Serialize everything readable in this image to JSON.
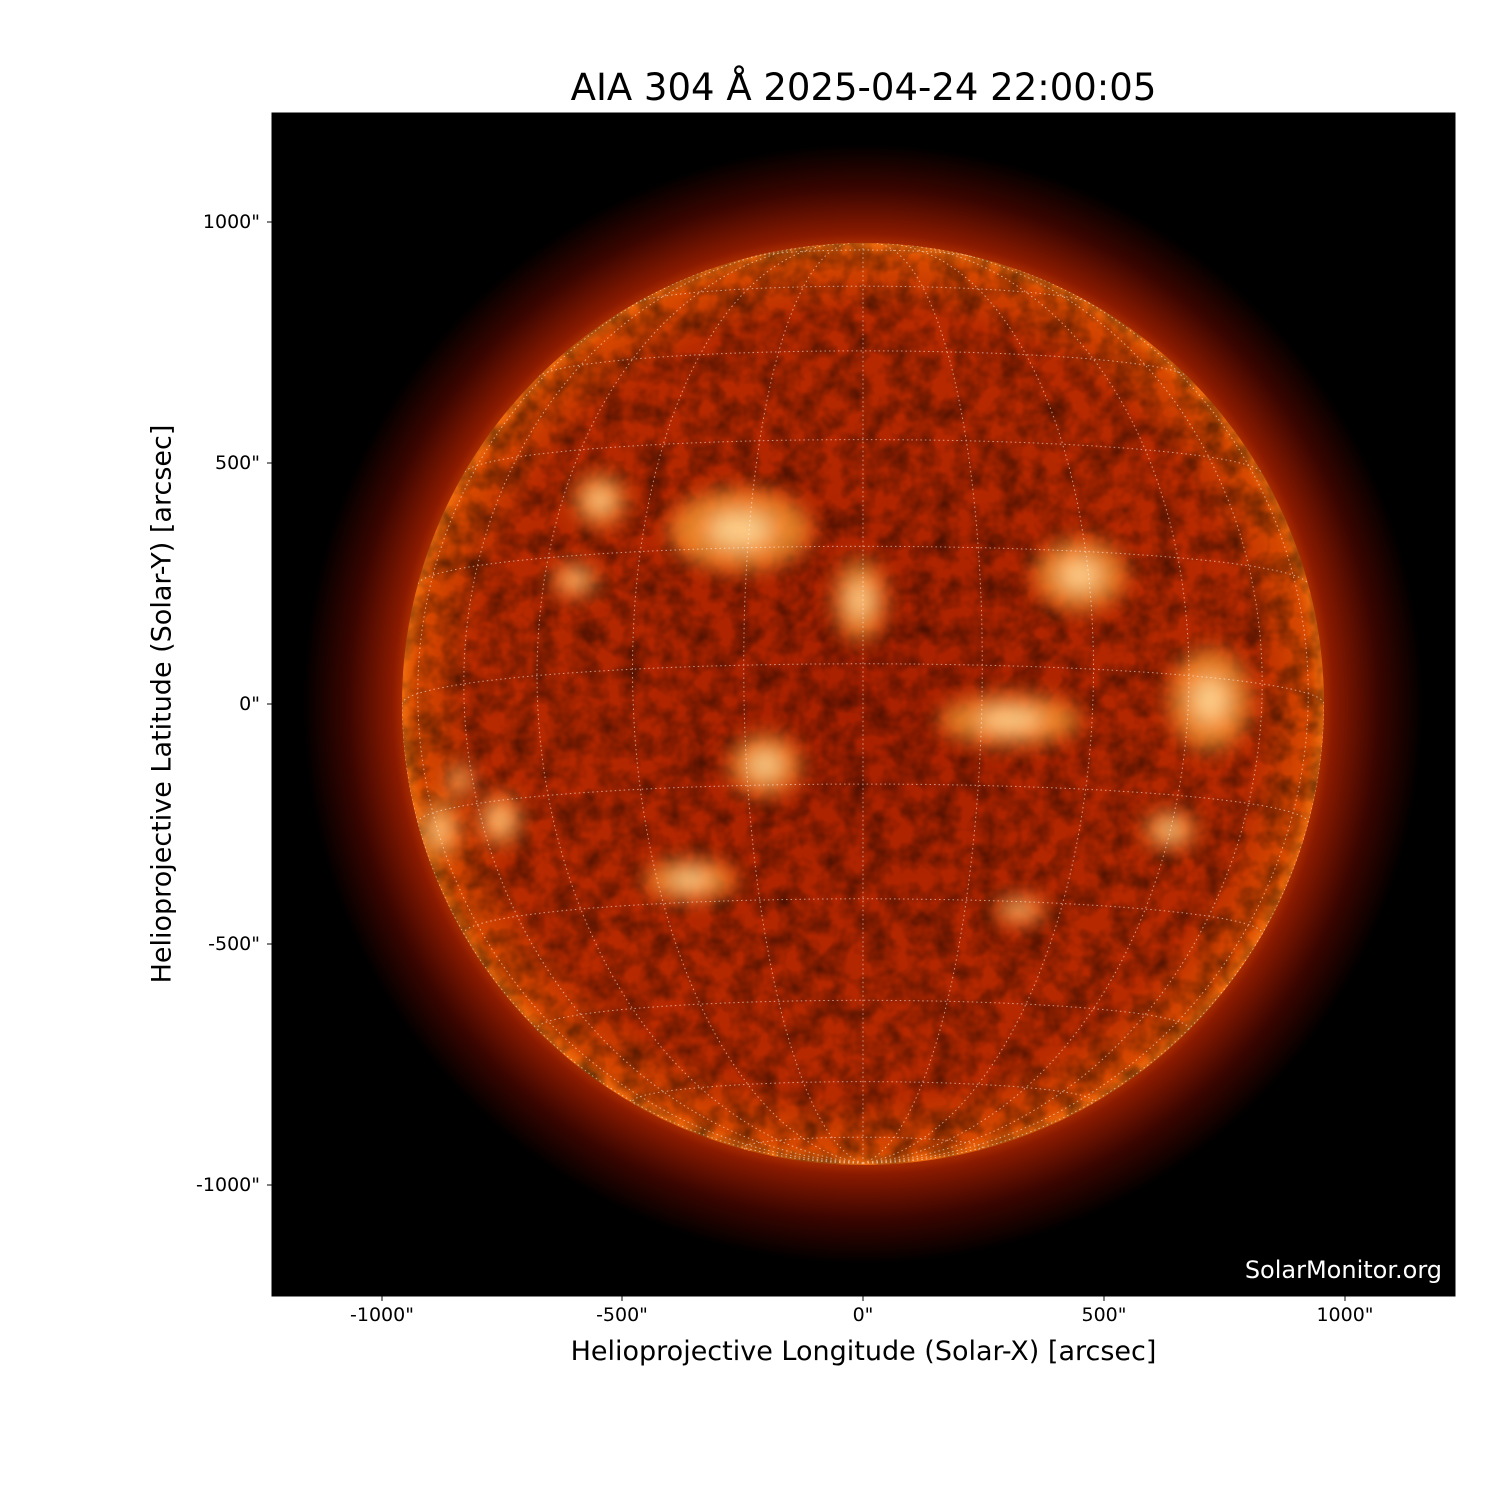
{
  "title": "AIA 304 Å 2025-04-24 22:00:05",
  "instrument": "AIA",
  "wavelength": "304 Å",
  "observation_time": "2025-04-24 22:00:05",
  "axes": {
    "xlabel": "Helioprojective Longitude (Solar-X) [arcsec]",
    "ylabel": "Helioprojective Latitude (Solar-Y) [arcsec]",
    "xticks": [
      "-1000\"",
      "-500\"",
      "0\"",
      "500\"",
      "1000\""
    ],
    "yticks": [
      "1000\"",
      "500\"",
      "0\"",
      "-500\"",
      "-1000\""
    ],
    "xlim": [
      -1230,
      1230
    ],
    "ylim": [
      -1230,
      1230
    ]
  },
  "watermark": "SolarMonitor.org",
  "colors": {
    "background": "#000000",
    "disk": "#b82a00",
    "bright": "#ffd080",
    "grid": "#ffffff"
  }
}
